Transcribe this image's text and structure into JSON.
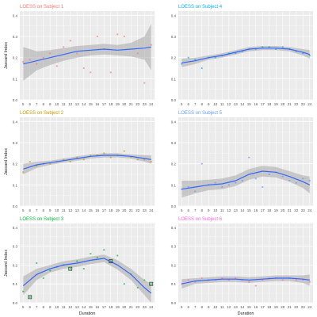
{
  "chart_data": [
    {
      "type": "scatter",
      "title": "LOESS on Subject 1",
      "title_color": "#F8766D",
      "point_color": "#F8766D",
      "xlabel": "",
      "ylabel": "Jaccard Index",
      "x_ticks": [
        "5",
        "6",
        "7",
        "8",
        "9",
        "10",
        "11",
        "12",
        "13",
        "14",
        "15",
        "16",
        "17",
        "18",
        "19",
        "20",
        "21",
        "22",
        "23",
        "24"
      ],
      "y_ticks": [
        "0.0",
        "0.1",
        "0.2",
        "0.3",
        "0.4"
      ],
      "ylim": [
        0,
        0.42
      ],
      "grid": true,
      "loess_x": [
        5,
        7,
        9,
        11,
        13,
        15,
        17,
        19,
        21,
        23,
        24
      ],
      "loess_y": [
        0.17,
        0.185,
        0.2,
        0.215,
        0.23,
        0.235,
        0.24,
        0.235,
        0.24,
        0.245,
        0.25
      ],
      "band_upper": [
        0.25,
        0.23,
        0.235,
        0.245,
        0.255,
        0.26,
        0.265,
        0.26,
        0.27,
        0.3,
        0.36
      ],
      "band_lower": [
        0.09,
        0.14,
        0.165,
        0.185,
        0.2,
        0.21,
        0.215,
        0.21,
        0.205,
        0.19,
        0.14
      ],
      "points": [
        {
          "x": 5,
          "y": 0.18
        },
        {
          "x": 6,
          "y": 0.19
        },
        {
          "x": 7,
          "y": 0.17
        },
        {
          "x": 8,
          "y": 0.2
        },
        {
          "x": 9,
          "y": 0.22
        },
        {
          "x": 10,
          "y": 0.16
        },
        {
          "x": 11,
          "y": 0.25
        },
        {
          "x": 12,
          "y": 0.28
        },
        {
          "x": 13,
          "y": 0.22
        },
        {
          "x": 14,
          "y": 0.15
        },
        {
          "x": 15,
          "y": 0.13
        },
        {
          "x": 16,
          "y": 0.3
        },
        {
          "x": 17,
          "y": 0.24
        },
        {
          "x": 18,
          "y": 0.13
        },
        {
          "x": 19,
          "y": 0.31
        },
        {
          "x": 20,
          "y": 0.3
        },
        {
          "x": 22,
          "y": 0.22
        },
        {
          "x": 23,
          "y": 0.08
        },
        {
          "x": 24,
          "y": 0.26
        }
      ]
    },
    {
      "type": "scatter",
      "title": "LOESS on Subject 4",
      "title_color": "#00B0F6",
      "point_color": "#00B0F6",
      "xlabel": "",
      "ylabel": "",
      "x_ticks": [
        "5",
        "6",
        "7",
        "8",
        "9",
        "10",
        "11",
        "12",
        "13",
        "14",
        "15",
        "16",
        "17",
        "18",
        "19",
        "20",
        "21",
        "22",
        "23",
        "24"
      ],
      "y_ticks": [
        "0.0",
        "0.1",
        "0.2",
        "0.3",
        "0.4"
      ],
      "ylim": [
        0,
        0.42
      ],
      "grid": true,
      "loess_x": [
        5,
        7,
        9,
        11,
        13,
        15,
        17,
        19,
        21,
        23,
        24
      ],
      "loess_y": [
        0.175,
        0.185,
        0.2,
        0.21,
        0.225,
        0.24,
        0.245,
        0.245,
        0.24,
        0.225,
        0.215
      ],
      "band_upper": [
        0.195,
        0.2,
        0.21,
        0.22,
        0.235,
        0.25,
        0.255,
        0.255,
        0.25,
        0.24,
        0.235
      ],
      "band_lower": [
        0.155,
        0.17,
        0.19,
        0.2,
        0.215,
        0.23,
        0.235,
        0.235,
        0.23,
        0.21,
        0.195
      ],
      "points": [
        {
          "x": 5,
          "y": 0.17
        },
        {
          "x": 6,
          "y": 0.2
        },
        {
          "x": 7,
          "y": 0.19
        },
        {
          "x": 8,
          "y": 0.15
        },
        {
          "x": 9,
          "y": 0.2
        },
        {
          "x": 10,
          "y": 0.2
        },
        {
          "x": 11,
          "y": 0.21
        },
        {
          "x": 12,
          "y": 0.22
        },
        {
          "x": 13,
          "y": 0.22
        },
        {
          "x": 14,
          "y": 0.23
        },
        {
          "x": 15,
          "y": 0.24
        },
        {
          "x": 16,
          "y": 0.24
        },
        {
          "x": 17,
          "y": 0.25
        },
        {
          "x": 18,
          "y": 0.25
        },
        {
          "x": 19,
          "y": 0.24
        },
        {
          "x": 20,
          "y": 0.25
        },
        {
          "x": 21,
          "y": 0.24
        },
        {
          "x": 22,
          "y": 0.23
        },
        {
          "x": 23,
          "y": 0.22
        },
        {
          "x": 24,
          "y": 0.21
        }
      ]
    },
    {
      "type": "scatter",
      "title": "LOESS on Subject 2",
      "title_color": "#C49A00",
      "point_color": "#C49A00",
      "xlabel": "",
      "ylabel": "Jaccard Index",
      "x_ticks": [
        "5",
        "6",
        "7",
        "8",
        "9",
        "10",
        "11",
        "12",
        "13",
        "14",
        "15",
        "16",
        "17",
        "18",
        "19",
        "20",
        "21",
        "22",
        "23",
        "24"
      ],
      "y_ticks": [
        "0.0",
        "0.1",
        "0.2",
        "0.3",
        "0.4"
      ],
      "ylim": [
        0,
        0.42
      ],
      "grid": true,
      "loess_x": [
        5,
        7,
        9,
        11,
        13,
        15,
        17,
        19,
        21,
        23,
        24
      ],
      "loess_y": [
        0.175,
        0.195,
        0.205,
        0.215,
        0.225,
        0.235,
        0.24,
        0.24,
        0.235,
        0.225,
        0.22
      ],
      "band_upper": [
        0.2,
        0.21,
        0.215,
        0.225,
        0.235,
        0.245,
        0.25,
        0.25,
        0.245,
        0.24,
        0.24
      ],
      "band_lower": [
        0.15,
        0.18,
        0.195,
        0.205,
        0.215,
        0.225,
        0.23,
        0.23,
        0.225,
        0.21,
        0.2
      ],
      "points": [
        {
          "x": 5,
          "y": 0.16
        },
        {
          "x": 6,
          "y": 0.21
        },
        {
          "x": 7,
          "y": 0.19
        },
        {
          "x": 8,
          "y": 0.2
        },
        {
          "x": 9,
          "y": 0.2
        },
        {
          "x": 10,
          "y": 0.21
        },
        {
          "x": 11,
          "y": 0.22
        },
        {
          "x": 12,
          "y": 0.21
        },
        {
          "x": 13,
          "y": 0.23
        },
        {
          "x": 14,
          "y": 0.22
        },
        {
          "x": 15,
          "y": 0.24
        },
        {
          "x": 16,
          "y": 0.24
        },
        {
          "x": 17,
          "y": 0.25
        },
        {
          "x": 18,
          "y": 0.23
        },
        {
          "x": 19,
          "y": 0.24
        },
        {
          "x": 20,
          "y": 0.26
        },
        {
          "x": 21,
          "y": 0.23
        },
        {
          "x": 22,
          "y": 0.22
        },
        {
          "x": 23,
          "y": 0.22
        },
        {
          "x": 24,
          "y": 0.21
        }
      ]
    },
    {
      "type": "scatter",
      "title": "LOESS on Subject 5",
      "title_color": "#619CFF",
      "point_color": "#619CFF",
      "xlabel": "",
      "ylabel": "",
      "x_ticks": [
        "5",
        "6",
        "7",
        "8",
        "9",
        "10",
        "11",
        "12",
        "13",
        "14",
        "15",
        "16",
        "17",
        "18",
        "19",
        "20",
        "21",
        "22",
        "23",
        "24"
      ],
      "y_ticks": [
        "0.0",
        "0.1",
        "0.2",
        "0.3",
        "0.4"
      ],
      "ylim": [
        0,
        0.42
      ],
      "grid": true,
      "loess_x": [
        5,
        7,
        9,
        11,
        13,
        15,
        17,
        19,
        21,
        23,
        24
      ],
      "loess_y": [
        0.08,
        0.09,
        0.1,
        0.105,
        0.12,
        0.15,
        0.165,
        0.16,
        0.14,
        0.115,
        0.1
      ],
      "band_upper": [
        0.12,
        0.12,
        0.125,
        0.13,
        0.145,
        0.175,
        0.19,
        0.185,
        0.165,
        0.145,
        0.14
      ],
      "band_lower": [
        0.04,
        0.06,
        0.075,
        0.08,
        0.095,
        0.125,
        0.14,
        0.135,
        0.115,
        0.085,
        0.06
      ],
      "points": [
        {
          "x": 5,
          "y": 0.08
        },
        {
          "x": 6,
          "y": 0.09
        },
        {
          "x": 7,
          "y": 0.07
        },
        {
          "x": 8,
          "y": 0.2
        },
        {
          "x": 9,
          "y": 0.1
        },
        {
          "x": 10,
          "y": 0.11
        },
        {
          "x": 11,
          "y": 0.09
        },
        {
          "x": 12,
          "y": 0.1
        },
        {
          "x": 13,
          "y": 0.11
        },
        {
          "x": 14,
          "y": 0.12
        },
        {
          "x": 15,
          "y": 0.23
        },
        {
          "x": 16,
          "y": 0.13
        },
        {
          "x": 17,
          "y": 0.09
        },
        {
          "x": 18,
          "y": 0.15
        },
        {
          "x": 19,
          "y": 0.16
        },
        {
          "x": 20,
          "y": 0.14
        },
        {
          "x": 21,
          "y": 0.12
        },
        {
          "x": 22,
          "y": 0.11
        },
        {
          "x": 23,
          "y": 0.13
        },
        {
          "x": 24,
          "y": 0.12
        }
      ]
    },
    {
      "type": "scatter",
      "title": "LOESS on Subject 3",
      "title_color": "#00BA38",
      "point_color": "#00BA38",
      "xlabel": "Duration",
      "ylabel": "Jaccard Index",
      "x_ticks": [
        "5",
        "6",
        "7",
        "8",
        "9",
        "10",
        "11",
        "12",
        "13",
        "14",
        "15",
        "16",
        "17",
        "18",
        "19",
        "20",
        "21",
        "22",
        "23",
        "24"
      ],
      "y_ticks": [
        "0.0",
        "0.1",
        "0.2",
        "0.3",
        "0.4"
      ],
      "ylim": [
        0,
        0.42
      ],
      "grid": true,
      "loess_x": [
        5,
        7,
        9,
        11,
        13,
        15,
        17,
        19,
        21,
        23,
        24
      ],
      "loess_y": [
        0.09,
        0.15,
        0.18,
        0.2,
        0.21,
        0.225,
        0.235,
        0.2,
        0.15,
        0.08,
        0.05
      ],
      "band_upper": [
        0.14,
        0.18,
        0.2,
        0.22,
        0.23,
        0.245,
        0.255,
        0.225,
        0.18,
        0.12,
        0.1
      ],
      "band_lower": [
        0.04,
        0.12,
        0.16,
        0.18,
        0.19,
        0.205,
        0.215,
        0.175,
        0.12,
        0.04,
        0.0
      ],
      "points": [
        {
          "x": 5,
          "y": 0.06
        },
        {
          "x": 6,
          "y": 0.03
        },
        {
          "x": 7,
          "y": 0.21
        },
        {
          "x": 8,
          "y": 0.13
        },
        {
          "x": 9,
          "y": 0.17
        },
        {
          "x": 10,
          "y": 0.19
        },
        {
          "x": 11,
          "y": 0.2
        },
        {
          "x": 12,
          "y": 0.18
        },
        {
          "x": 13,
          "y": 0.22
        },
        {
          "x": 14,
          "y": 0.18
        },
        {
          "x": 15,
          "y": 0.26
        },
        {
          "x": 16,
          "y": 0.24
        },
        {
          "x": 17,
          "y": 0.28
        },
        {
          "x": 18,
          "y": 0.22
        },
        {
          "x": 19,
          "y": 0.25
        },
        {
          "x": 20,
          "y": 0.1
        },
        {
          "x": 21,
          "y": 0.15
        },
        {
          "x": 22,
          "y": 0.08
        },
        {
          "x": 23,
          "y": 0.12
        },
        {
          "x": 24,
          "y": 0.1
        }
      ]
    },
    {
      "type": "scatter",
      "title": "LOESS on Subject 6",
      "title_color": "#F564E3",
      "point_color": "#F564E3",
      "xlabel": "Duration",
      "ylabel": "",
      "x_ticks": [
        "5",
        "6",
        "7",
        "8",
        "9",
        "10",
        "11",
        "12",
        "13",
        "14",
        "15",
        "16",
        "17",
        "18",
        "19",
        "20",
        "21",
        "22",
        "23",
        "24"
      ],
      "y_ticks": [
        "0.0",
        "0.1",
        "0.2",
        "0.3",
        "0.4"
      ],
      "ylim": [
        0,
        0.42
      ],
      "grid": true,
      "loess_x": [
        5,
        7,
        9,
        11,
        13,
        15,
        17,
        19,
        21,
        23,
        24
      ],
      "loess_y": [
        0.1,
        0.115,
        0.12,
        0.125,
        0.125,
        0.12,
        0.125,
        0.13,
        0.13,
        0.125,
        0.12
      ],
      "band_upper": [
        0.125,
        0.13,
        0.135,
        0.14,
        0.14,
        0.135,
        0.14,
        0.145,
        0.145,
        0.145,
        0.15
      ],
      "band_lower": [
        0.075,
        0.1,
        0.105,
        0.11,
        0.11,
        0.105,
        0.11,
        0.115,
        0.115,
        0.105,
        0.09
      ],
      "points": [
        {
          "x": 5,
          "y": 0.1
        },
        {
          "x": 6,
          "y": 0.12
        },
        {
          "x": 7,
          "y": 0.11
        },
        {
          "x": 8,
          "y": 0.13
        },
        {
          "x": 9,
          "y": 0.12
        },
        {
          "x": 10,
          "y": 0.12
        },
        {
          "x": 11,
          "y": 0.13
        },
        {
          "x": 12,
          "y": 0.12
        },
        {
          "x": 13,
          "y": 0.13
        },
        {
          "x": 14,
          "y": 0.12
        },
        {
          "x": 15,
          "y": 0.11
        },
        {
          "x": 16,
          "y": 0.09
        },
        {
          "x": 17,
          "y": 0.12
        },
        {
          "x": 18,
          "y": 0.13
        },
        {
          "x": 19,
          "y": 0.13
        },
        {
          "x": 20,
          "y": 0.12
        },
        {
          "x": 21,
          "y": 0.13
        },
        {
          "x": 22,
          "y": 0.12
        },
        {
          "x": 23,
          "y": 0.12
        },
        {
          "x": 24,
          "y": 0.11
        }
      ]
    }
  ],
  "colors": {
    "panel_bg": "#EBEBEB",
    "grid_major": "#FFFFFF",
    "grid_minor": "#F4F4F4",
    "loess_line": "#3366FF",
    "band_fill": "#999999",
    "axis_text": "#4D4D4D",
    "axis_title": "#222222",
    "highlight_square": "#1A4D2E"
  },
  "highlighted_points": [
    {
      "panel": 4,
      "x": 6,
      "y": 0.03
    },
    {
      "panel": 4,
      "x": 12,
      "y": 0.18
    },
    {
      "panel": 4,
      "x": 18,
      "y": 0.22
    },
    {
      "panel": 4,
      "x": 24,
      "y": 0.1
    }
  ]
}
